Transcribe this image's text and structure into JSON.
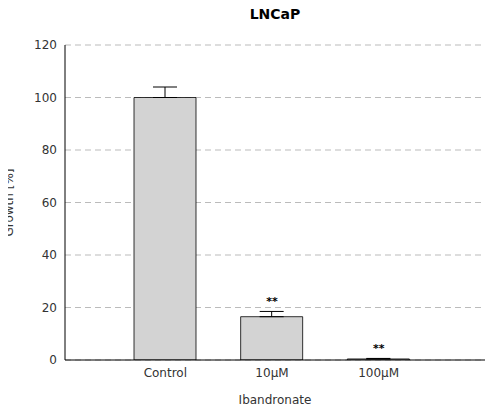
{
  "chart_data": {
    "type": "bar",
    "title": "LNCaP",
    "x_label": "Ibandronate",
    "y_label": "Growth [%]",
    "categories": [
      "Control",
      "10µM",
      "100µM"
    ],
    "values": [
      100,
      16.5,
      0.4
    ],
    "errors": [
      4,
      2,
      0.2
    ],
    "annotations": [
      {
        "category": "10µM",
        "text": "**"
      },
      {
        "category": "100µM",
        "text": "**"
      }
    ],
    "color": "#d3d3d3",
    "ylim": [
      0,
      120
    ],
    "yticks": [
      0,
      20,
      40,
      60,
      80,
      100,
      120
    ],
    "grid": true
  }
}
